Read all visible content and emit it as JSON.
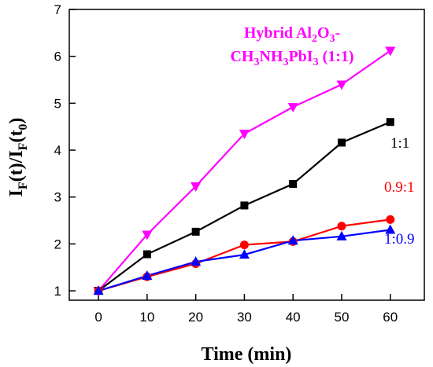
{
  "chart_data": {
    "type": "line",
    "x": [
      0,
      10,
      20,
      30,
      40,
      50,
      60
    ],
    "xlabel": "Time (min)",
    "ylabel": "I_F(t)/I_F(t_0)",
    "xlim": [
      -6,
      67
    ],
    "ylim": [
      0.8,
      7.0
    ],
    "x_ticks": [
      "0",
      "10",
      "20",
      "30",
      "40",
      "50",
      "60"
    ],
    "y_ticks": [
      "1",
      "2",
      "3",
      "4",
      "5",
      "6",
      "7"
    ],
    "grid": false,
    "legend": "none",
    "series": [
      {
        "name": "Hybrid Al2O3-CH3NH3PbI3 (1:1)",
        "color": "#ff00ff",
        "marker": "triangle-down",
        "values": [
          1.0,
          2.2,
          3.23,
          4.35,
          4.92,
          5.4,
          6.12
        ]
      },
      {
        "name": "1:1",
        "color": "#000000",
        "marker": "square",
        "values": [
          1.0,
          1.78,
          2.26,
          2.82,
          3.28,
          4.16,
          4.6
        ]
      },
      {
        "name": "0.9:1",
        "color": "#ff0000",
        "marker": "circle",
        "values": [
          1.0,
          1.3,
          1.58,
          1.98,
          2.05,
          2.38,
          2.52
        ]
      },
      {
        "name": "1:0.9",
        "color": "#0000ff",
        "marker": "triangle-up",
        "values": [
          1.0,
          1.32,
          1.62,
          1.77,
          2.07,
          2.16,
          2.3
        ]
      }
    ],
    "annotations": {
      "hybrid_line1_a": "Hybrid Al",
      "hybrid_line1_sub1": "2",
      "hybrid_line1_b": "O",
      "hybrid_line1_sub2": "3",
      "hybrid_line1_c": "-",
      "hybrid_line2_a": "CH",
      "hybrid_line2_sub1": "3",
      "hybrid_line2_b": "NH",
      "hybrid_line2_sub2": "3",
      "hybrid_line2_c": "PbI",
      "hybrid_line2_sub3": "3",
      "hybrid_line2_d": " (1:1)",
      "label_1_1": "1:1",
      "label_09_1": "0.9:1",
      "label_1_09": "1:0.9"
    }
  }
}
